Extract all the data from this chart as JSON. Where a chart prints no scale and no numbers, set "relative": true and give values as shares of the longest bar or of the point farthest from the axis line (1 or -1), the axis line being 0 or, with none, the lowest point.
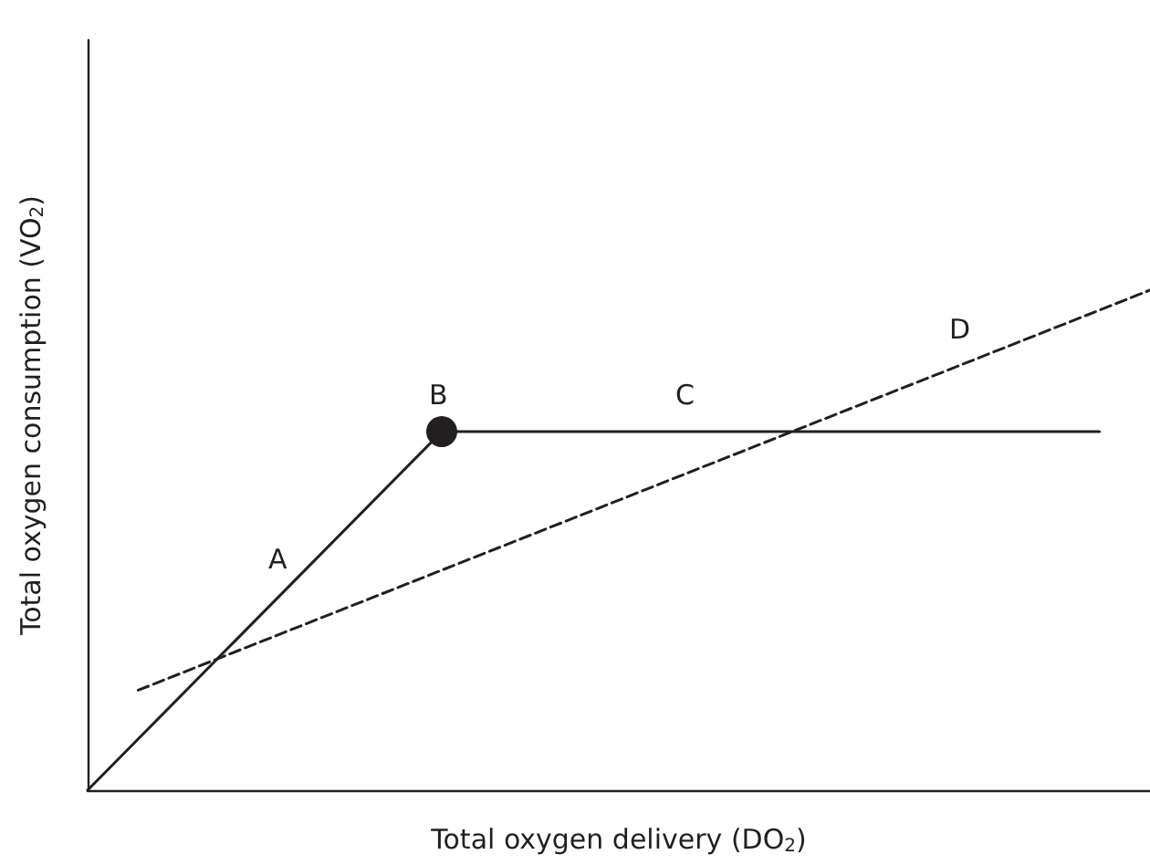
{
  "chart_data": {
    "type": "line",
    "relative": true,
    "xlabel": "Total oxygen delivery (DO$_{2}$)",
    "ylabel": "Total oxygen consumption (VO$_{2}$)",
    "categories": [
      null,
      null,
      null,
      null,
      null,
      null,
      null,
      null,
      null,
      null,
      null,
      null,
      null,
      null,
      null,
      null,
      null,
      null,
      null,
      null,
      null,
      null
    ],
    "series": [
      {
        "color": "#231f20",
        "line_style": "solid",
        "marker": "none",
        "values": [
          0,
          null,
          null,
          null,
          null,
          null,
          null,
          0.717,
          null,
          null,
          null,
          null,
          null,
          null,
          null,
          null,
          null,
          null,
          null,
          null,
          0.717,
          null
        ]
      },
      {
        "color": "#231f20",
        "line_style": "dashed",
        "marker": "none",
        "values": [
          null,
          0.2,
          null,
          null,
          null,
          null,
          null,
          null,
          null,
          null,
          null,
          null,
          null,
          null,
          null,
          null,
          null,
          null,
          null,
          null,
          null,
          1
        ]
      },
      {
        "color": "#231f20",
        "marker": "circle",
        "values": [
          null,
          null,
          null,
          null,
          null,
          null,
          null,
          0.717,
          null,
          null,
          null,
          null,
          null,
          null,
          null,
          null,
          null,
          null,
          null,
          null,
          null,
          null
        ]
      }
    ],
    "annotations": [
      "A",
      "B",
      "C",
      "D"
    ],
    "grid": false
  }
}
